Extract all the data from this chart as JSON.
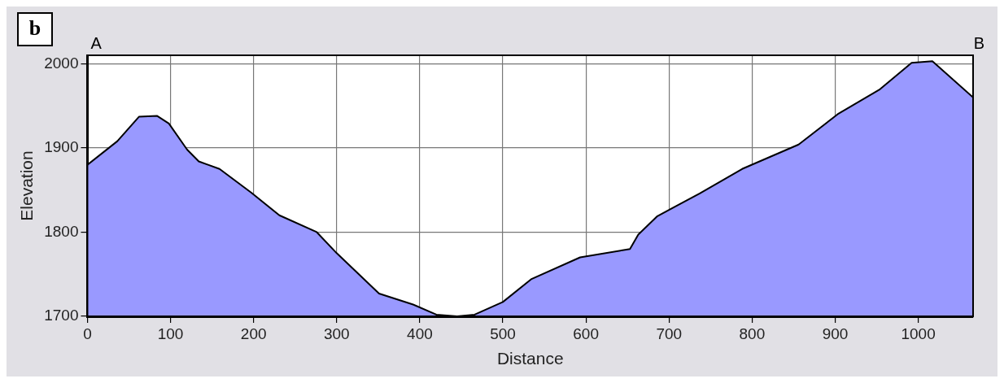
{
  "chart_data": {
    "type": "area",
    "xlabel": "Distance",
    "ylabel": "Elevation",
    "annotations": [
      "b",
      "A",
      "B"
    ],
    "x": [
      0,
      36,
      62,
      84,
      98,
      120,
      134,
      159,
      197,
      231,
      276,
      300,
      351,
      392,
      420,
      445,
      466,
      500,
      534,
      593,
      653,
      663,
      686,
      737,
      788,
      856,
      903,
      953,
      992,
      1017,
      1066
    ],
    "series": [
      {
        "color": "#9999ff",
        "values": [
          1880,
          1908,
          1937,
          1938,
          1929,
          1898,
          1884,
          1875,
          1847,
          1820,
          1800,
          1775,
          1727,
          1714,
          1702,
          1700,
          1702,
          1717,
          1744,
          1770,
          1780,
          1797,
          1819,
          1846,
          1875,
          1904,
          1940,
          1969,
          2001,
          2003,
          1960
        ]
      }
    ],
    "xlim": [
      0,
      1066
    ],
    "ylim": [
      1700,
      2010
    ],
    "xticks": [
      0,
      100,
      200,
      300,
      400,
      500,
      600,
      700,
      800,
      900,
      1000
    ],
    "yticks": [
      1700,
      1800,
      1900,
      2000
    ],
    "grid": true,
    "legend": false
  }
}
